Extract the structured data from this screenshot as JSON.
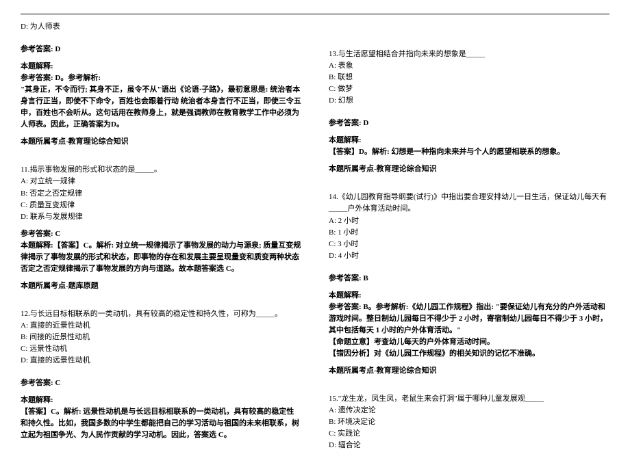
{
  "left": {
    "optD": "D: 为人师表",
    "ans_label": "参考答案: D",
    "expl_title": "本题解释:",
    "expl_p1": "参考答案: D。参考解析:",
    "expl_p2": "\"其身正，不令而行; 其身不正，虽令不从\"语出《论语·子路》，最初意思是: 统治者本身言行正当，即使不下命令，百姓也会跟着行动 统治者本身言行不正当，即使三令五申，百姓也不会听从。这句话用在教师身上，就是强调教师在教育教学工作中必须为人师表。因此，正确答案为D。",
    "topic1": "本题所属考点-教育理论综合知识",
    "q11": "11.揭示事物发展的形式和状态的是_____。",
    "q11A": "A: 对立统一规律",
    "q11B": "B: 否定之否定规律",
    "q11C": "C: 质量互变规律",
    "q11D": "D: 联系与发展规律",
    "q11ans": "参考答案: C",
    "q11expl": "本题解释:【答案】C。解析: 对立统一规律揭示了事物发展的动力与源泉; 质量互变规律揭示了事物发展的形式和状态，即事物的存在和发展主要呈现量变和质变两种状态 否定之否定规律揭示了事物发展的方向与道路。故本题答案选 C。",
    "q11topic": "本题所属考点-题库原题",
    "q12": "12.与长远目标相联系的一类动机，具有较高的稳定性和持久性，可称为_____。",
    "q12A": "A: 直接的近景性动机",
    "q12B": "B: 间接的近景性动机",
    "q12C": "C: 远景性动机",
    "q12D": "D: 直接的远景性动机",
    "q12ans": "参考答案: C",
    "q12explT": "本题解释:",
    "q12expl": "【答案】C。解析: 远景性动机是与长远目标相联系的一类动机，具有较高的稳定性和持久性。比如，我国多数的中学生都能把自己的学习活动与祖国的未来相联系，树立起为祖国争光、为人民作贡献的学习动机。因此，答案选 C。"
  },
  "right": {
    "q13": "13.与生活愿望相结合并指向未来的想象是_____",
    "q13A": "A: 表象",
    "q13B": "B: 联想",
    "q13C": "C: 做梦",
    "q13D": "D: 幻想",
    "q13ans": "参考答案: D",
    "q13explT": "本题解释:",
    "q13expl": "【答案】D。解析: 幻想是一种指向未来并与个人的愿望相联系的想象。",
    "q13topic": "本题所属考点-教育理论综合知识",
    "q14": "14.《幼儿园教育指导纲要(试行)》中指出要合理安排幼儿一日生活，保证幼儿每天有_____户外体育活动时间。",
    "q14A": "A: 2 小时",
    "q14B": "B: 1 小时",
    "q14C": "C: 3 小时",
    "q14D": "D: 4 小时",
    "q14ans": "参考答案: B",
    "q14explT": "本题解释:",
    "q14expl1": "参考答案: B。参考解析:《幼儿园工作规程》指出: \"要保证幼儿有充分的户外活动和游戏时间。整日制幼儿园每日不得少于 2 小时，寄宿制幼儿园每日不得少于 3 小时，其中包括每天 1 小时的户外体育活动。\"",
    "q14expl2": "【命题立意】考查幼儿每天的户外体育活动时间。",
    "q14expl3": "【错因分析】对《幼儿园工作规程》的相关知识的记忆不准确。",
    "q14topic": "本题所属考点-教育理论综合知识",
    "q15": "15.\"龙生龙，凤生凤，老鼠生来会打洞\"属于哪种儿童发展观_____",
    "q15A": "A: 遗传决定论",
    "q15B": "B: 环境决定论",
    "q15C": "C: 实践论",
    "q15D": "D: 辐合论"
  }
}
